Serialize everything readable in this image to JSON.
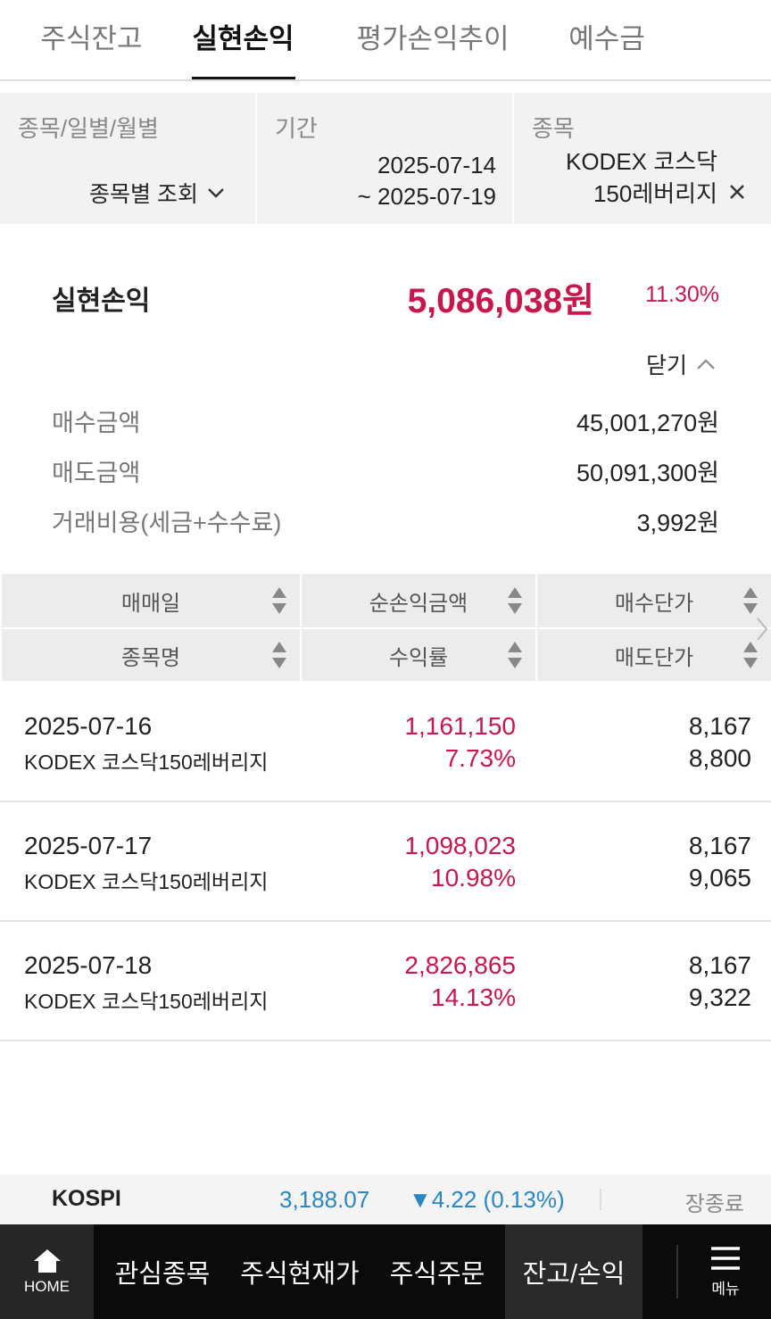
{
  "tabs": [
    "주식잔고",
    "실현손익",
    "평가손익추이",
    "예수금"
  ],
  "filters": {
    "view_label": "종목/일별/월별",
    "view_value": "종목별 조회",
    "period_label": "기간",
    "period_start": "2025-07-14",
    "period_end": "~ 2025-07-19",
    "item_label": "종목",
    "item_value": [
      "KODEX 코스닥",
      "150레버리지"
    ]
  },
  "summary": {
    "title": "실현손익",
    "amount": "5,086,038원",
    "rate": "11.30%",
    "toggle": "닫기",
    "details": [
      [
        "매수금액",
        "45,001,270원"
      ],
      [
        "매도금액",
        "50,091,300원"
      ],
      [
        "거래비용(세금+수수료)",
        "3,992원"
      ]
    ]
  },
  "table": {
    "header": [
      [
        "매매일",
        "순손익금액",
        "매수단가"
      ],
      [
        "종목명",
        "수익률",
        "매도단가"
      ]
    ],
    "rows": [
      {
        "date": "2025-07-16",
        "name": "KODEX 코스닥150레버리지",
        "profit": "1,161,150",
        "rate": "7.73%",
        "buy_price": "8,167",
        "sell_price": "8,800"
      },
      {
        "date": "2025-07-17",
        "name": "KODEX 코스닥150레버리지",
        "profit": "1,098,023",
        "rate": "10.98%",
        "buy_price": "8,167",
        "sell_price": "9,065"
      },
      {
        "date": "2025-07-18",
        "name": "KODEX 코스닥150레버리지",
        "profit": "2,826,865",
        "rate": "14.13%",
        "buy_price": "8,167",
        "sell_price": "9,322"
      }
    ]
  },
  "ticker": {
    "name": "KOSPI",
    "value": "3,188.07",
    "change": "▼4.22 (0.13%)",
    "status": "장종료"
  },
  "nav": {
    "home": "HOME",
    "items": [
      "관심종목",
      "주식현재가",
      "주식주문",
      "잔고/손익"
    ],
    "menu": "메뉴"
  }
}
